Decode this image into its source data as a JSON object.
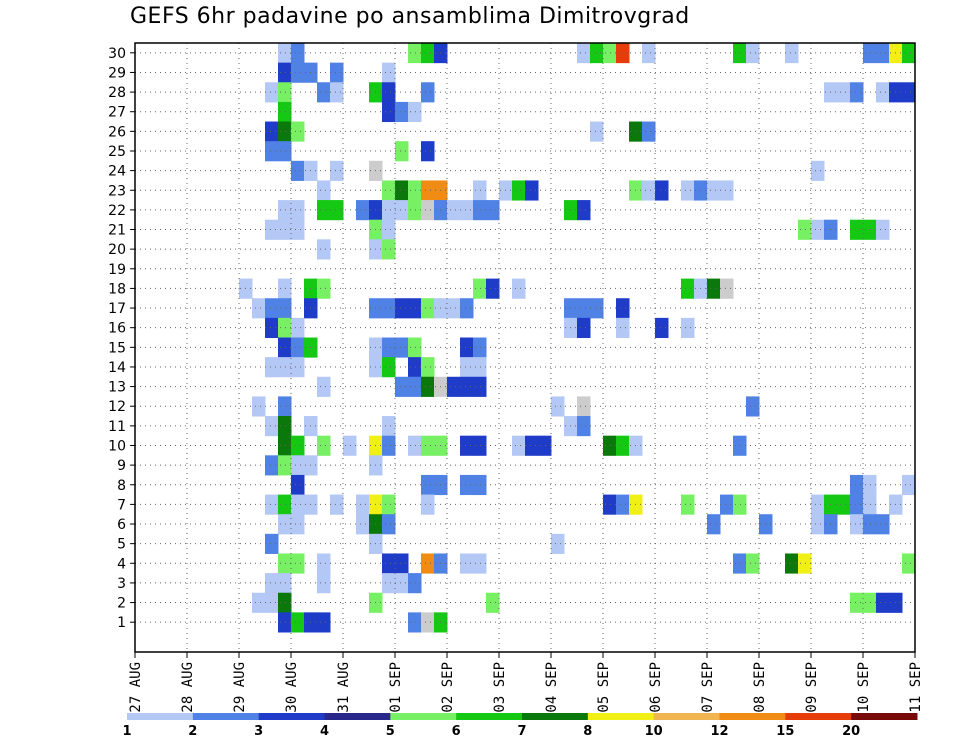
{
  "chart_data": {
    "type": "heatmap",
    "title": "GEFS 6hr padavine po ansamblima Dimitrovgrad",
    "xlabel": "",
    "ylabel": "",
    "x_ticks": [
      "27 AUG",
      "28 AUG",
      "29 AUG",
      "30 AUG",
      "31 AUG",
      "01 SEP",
      "02 SEP",
      "03 SEP",
      "04 SEP",
      "05 SEP",
      "06 SEP",
      "07 SEP",
      "08 SEP",
      "09 SEP",
      "10 SEP",
      "11 SEP"
    ],
    "xlim": [
      0,
      60
    ],
    "y_ticks": [
      "1",
      "2",
      "3",
      "4",
      "5",
      "6",
      "7",
      "8",
      "9",
      "10",
      "11",
      "12",
      "13",
      "14",
      "15",
      "16",
      "17",
      "18",
      "19",
      "20",
      "21",
      "22",
      "23",
      "24",
      "25",
      "26",
      "27",
      "28",
      "29",
      "30"
    ],
    "ylim": [
      0,
      30
    ],
    "grid": true,
    "legend": {
      "placement": "bottom",
      "levels": [
        "1",
        "2",
        "3",
        "4",
        "5",
        "6",
        "7",
        "8",
        "10",
        "12",
        "15",
        "20"
      ],
      "colors": [
        "#b4c8f5",
        "#5082e6",
        "#1e3cc8",
        "#28288c",
        "#78f064",
        "#14c814",
        "#0a780a",
        "#f0f014",
        "#f0b450",
        "#f08c14",
        "#e63c0a",
        "#780a0a"
      ]
    },
    "cells": [
      [
        11,
        30,
        1
      ],
      [
        12,
        30,
        2
      ],
      [
        21,
        30,
        5
      ],
      [
        22,
        30,
        6
      ],
      [
        23,
        30,
        3
      ],
      [
        34,
        30,
        1
      ],
      [
        35,
        30,
        6
      ],
      [
        36,
        30,
        5
      ],
      [
        37,
        30,
        11
      ],
      [
        39,
        30,
        1
      ],
      [
        46,
        30,
        6
      ],
      [
        47,
        30,
        1
      ],
      [
        50,
        30,
        1
      ],
      [
        56,
        30,
        2
      ],
      [
        57,
        30,
        2
      ],
      [
        58,
        30,
        8
      ],
      [
        59,
        30,
        6
      ],
      [
        11,
        29,
        3
      ],
      [
        12,
        29,
        2
      ],
      [
        13,
        29,
        2
      ],
      [
        15,
        29,
        2
      ],
      [
        19,
        29,
        1
      ],
      [
        10,
        28,
        1
      ],
      [
        11,
        28,
        5
      ],
      [
        14,
        28,
        2
      ],
      [
        15,
        28,
        1
      ],
      [
        18,
        28,
        6
      ],
      [
        19,
        28,
        3
      ],
      [
        22,
        28,
        2
      ],
      [
        53,
        28,
        1
      ],
      [
        54,
        28,
        1
      ],
      [
        55,
        28,
        2
      ],
      [
        57,
        28,
        1
      ],
      [
        58,
        28,
        3
      ],
      [
        59,
        28,
        3
      ],
      [
        11,
        27,
        6
      ],
      [
        19,
        27,
        3
      ],
      [
        20,
        27,
        2
      ],
      [
        21,
        27,
        1
      ],
      [
        10,
        26,
        3
      ],
      [
        11,
        26,
        7
      ],
      [
        12,
        26,
        5
      ],
      [
        35,
        26,
        1
      ],
      [
        38,
        26,
        7
      ],
      [
        39,
        26,
        2
      ],
      [
        10,
        25,
        2
      ],
      [
        11,
        25,
        2
      ],
      [
        20,
        25,
        5
      ],
      [
        22,
        25,
        3
      ],
      [
        12,
        24,
        2
      ],
      [
        13,
        24,
        1
      ],
      [
        15,
        24,
        1
      ],
      [
        18,
        24,
        20
      ],
      [
        52,
        24,
        1
      ],
      [
        14,
        23,
        1
      ],
      [
        19,
        23,
        5
      ],
      [
        20,
        23,
        7
      ],
      [
        21,
        23,
        5
      ],
      [
        22,
        23,
        10
      ],
      [
        23,
        23,
        10
      ],
      [
        26,
        23,
        1
      ],
      [
        28,
        23,
        1
      ],
      [
        29,
        23,
        6
      ],
      [
        30,
        23,
        3
      ],
      [
        38,
        23,
        5
      ],
      [
        39,
        23,
        1
      ],
      [
        40,
        23,
        3
      ],
      [
        42,
        23,
        1
      ],
      [
        43,
        23,
        2
      ],
      [
        44,
        23,
        1
      ],
      [
        45,
        23,
        1
      ],
      [
        11,
        22,
        1
      ],
      [
        12,
        22,
        1
      ],
      [
        14,
        22,
        6
      ],
      [
        15,
        22,
        6
      ],
      [
        17,
        22,
        2
      ],
      [
        18,
        22,
        3
      ],
      [
        19,
        22,
        1
      ],
      [
        20,
        22,
        1
      ],
      [
        21,
        22,
        5
      ],
      [
        22,
        22,
        20
      ],
      [
        23,
        22,
        2
      ],
      [
        24,
        22,
        1
      ],
      [
        25,
        22,
        1
      ],
      [
        26,
        22,
        2
      ],
      [
        27,
        22,
        2
      ],
      [
        33,
        22,
        6
      ],
      [
        34,
        22,
        3
      ],
      [
        10,
        21,
        1
      ],
      [
        11,
        21,
        1
      ],
      [
        12,
        21,
        1
      ],
      [
        18,
        21,
        5
      ],
      [
        19,
        21,
        1
      ],
      [
        51,
        21,
        5
      ],
      [
        52,
        21,
        1
      ],
      [
        53,
        21,
        2
      ],
      [
        55,
        21,
        6
      ],
      [
        56,
        21,
        6
      ],
      [
        57,
        21,
        1
      ],
      [
        18,
        20,
        1
      ],
      [
        19,
        20,
        5
      ],
      [
        14,
        20,
        1
      ],
      [
        8,
        18,
        1
      ],
      [
        11,
        18,
        1
      ],
      [
        13,
        18,
        6
      ],
      [
        14,
        18,
        5
      ],
      [
        26,
        18,
        5
      ],
      [
        27,
        18,
        3
      ],
      [
        29,
        18,
        1
      ],
      [
        42,
        18,
        6
      ],
      [
        43,
        18,
        1
      ],
      [
        44,
        18,
        7
      ],
      [
        45,
        18,
        15
      ],
      [
        9,
        17,
        1
      ],
      [
        10,
        17,
        2
      ],
      [
        11,
        17,
        2
      ],
      [
        13,
        17,
        3
      ],
      [
        18,
        17,
        2
      ],
      [
        19,
        17,
        2
      ],
      [
        20,
        17,
        3
      ],
      [
        21,
        17,
        3
      ],
      [
        22,
        17,
        5
      ],
      [
        23,
        17,
        1
      ],
      [
        24,
        17,
        1
      ],
      [
        25,
        17,
        2
      ],
      [
        33,
        17,
        2
      ],
      [
        34,
        17,
        2
      ],
      [
        35,
        17,
        2
      ],
      [
        37,
        17,
        3
      ],
      [
        10,
        16,
        3
      ],
      [
        11,
        16,
        5
      ],
      [
        12,
        16,
        1
      ],
      [
        33,
        16,
        1
      ],
      [
        34,
        16,
        3
      ],
      [
        37,
        16,
        1
      ],
      [
        40,
        16,
        3
      ],
      [
        42,
        16,
        1
      ],
      [
        11,
        15,
        3
      ],
      [
        12,
        15,
        2
      ],
      [
        13,
        15,
        6
      ],
      [
        18,
        15,
        1
      ],
      [
        19,
        15,
        2
      ],
      [
        20,
        15,
        2
      ],
      [
        21,
        15,
        5
      ],
      [
        25,
        15,
        3
      ],
      [
        26,
        15,
        2
      ],
      [
        10,
        14,
        1
      ],
      [
        11,
        14,
        1
      ],
      [
        12,
        14,
        1
      ],
      [
        18,
        14,
        1
      ],
      [
        19,
        14,
        6
      ],
      [
        21,
        14,
        3
      ],
      [
        22,
        14,
        5
      ],
      [
        25,
        14,
        1
      ],
      [
        26,
        14,
        1
      ],
      [
        14,
        13,
        1
      ],
      [
        20,
        13,
        2
      ],
      [
        21,
        13,
        2
      ],
      [
        22,
        13,
        7
      ],
      [
        23,
        13,
        20
      ],
      [
        24,
        13,
        3
      ],
      [
        25,
        13,
        3
      ],
      [
        26,
        13,
        3
      ],
      [
        9,
        12,
        1
      ],
      [
        11,
        12,
        2
      ],
      [
        32,
        12,
        1
      ],
      [
        34,
        12,
        15
      ],
      [
        47,
        12,
        2
      ],
      [
        10,
        11,
        1
      ],
      [
        11,
        11,
        7
      ],
      [
        13,
        11,
        1
      ],
      [
        19,
        11,
        1
      ],
      [
        33,
        11,
        1
      ],
      [
        34,
        11,
        2
      ],
      [
        11,
        10,
        7
      ],
      [
        12,
        10,
        6
      ],
      [
        14,
        10,
        5
      ],
      [
        16,
        10,
        1
      ],
      [
        18,
        10,
        8
      ],
      [
        19,
        10,
        2
      ],
      [
        21,
        10,
        1
      ],
      [
        22,
        10,
        5
      ],
      [
        23,
        10,
        5
      ],
      [
        25,
        10,
        3
      ],
      [
        26,
        10,
        3
      ],
      [
        29,
        10,
        1
      ],
      [
        30,
        10,
        3
      ],
      [
        31,
        10,
        3
      ],
      [
        36,
        10,
        7
      ],
      [
        37,
        10,
        6
      ],
      [
        38,
        10,
        1
      ],
      [
        46,
        10,
        2
      ],
      [
        10,
        9,
        2
      ],
      [
        11,
        9,
        5
      ],
      [
        12,
        9,
        1
      ],
      [
        13,
        9,
        1
      ],
      [
        18,
        9,
        1
      ],
      [
        12,
        8,
        3
      ],
      [
        22,
        8,
        2
      ],
      [
        23,
        8,
        2
      ],
      [
        25,
        8,
        2
      ],
      [
        26,
        8,
        2
      ],
      [
        55,
        8,
        2
      ],
      [
        56,
        8,
        1
      ],
      [
        59,
        8,
        1
      ],
      [
        10,
        7,
        1
      ],
      [
        11,
        7,
        6
      ],
      [
        12,
        7,
        1
      ],
      [
        13,
        7,
        1
      ],
      [
        15,
        7,
        1
      ],
      [
        17,
        7,
        1
      ],
      [
        18,
        7,
        8
      ],
      [
        19,
        7,
        5
      ],
      [
        22,
        7,
        1
      ],
      [
        36,
        7,
        3
      ],
      [
        37,
        7,
        2
      ],
      [
        38,
        7,
        8
      ],
      [
        42,
        7,
        5
      ],
      [
        45,
        7,
        2
      ],
      [
        46,
        7,
        5
      ],
      [
        52,
        7,
        1
      ],
      [
        53,
        7,
        6
      ],
      [
        54,
        7,
        6
      ],
      [
        55,
        7,
        2
      ],
      [
        56,
        7,
        1
      ],
      [
        58,
        7,
        1
      ],
      [
        11,
        6,
        1
      ],
      [
        12,
        6,
        1
      ],
      [
        17,
        6,
        1
      ],
      [
        18,
        6,
        7
      ],
      [
        19,
        6,
        2
      ],
      [
        44,
        6,
        2
      ],
      [
        48,
        6,
        2
      ],
      [
        52,
        6,
        1
      ],
      [
        53,
        6,
        2
      ],
      [
        55,
        6,
        1
      ],
      [
        56,
        6,
        2
      ],
      [
        57,
        6,
        2
      ],
      [
        10,
        5,
        2
      ],
      [
        18,
        5,
        1
      ],
      [
        32,
        5,
        1
      ],
      [
        11,
        4,
        5
      ],
      [
        12,
        4,
        5
      ],
      [
        14,
        4,
        1
      ],
      [
        19,
        4,
        3
      ],
      [
        20,
        4,
        3
      ],
      [
        22,
        4,
        10
      ],
      [
        23,
        4,
        2
      ],
      [
        25,
        4,
        1
      ],
      [
        26,
        4,
        1
      ],
      [
        46,
        4,
        2
      ],
      [
        47,
        4,
        5
      ],
      [
        50,
        4,
        7
      ],
      [
        51,
        4,
        8
      ],
      [
        59,
        4,
        5
      ],
      [
        10,
        3,
        1
      ],
      [
        11,
        3,
        1
      ],
      [
        14,
        3,
        1
      ],
      [
        19,
        3,
        1
      ],
      [
        20,
        3,
        1
      ],
      [
        21,
        3,
        2
      ],
      [
        9,
        2,
        1
      ],
      [
        10,
        2,
        1
      ],
      [
        11,
        2,
        7
      ],
      [
        18,
        2,
        5
      ],
      [
        27,
        2,
        5
      ],
      [
        55,
        2,
        5
      ],
      [
        56,
        2,
        5
      ],
      [
        57,
        2,
        3
      ],
      [
        58,
        2,
        3
      ],
      [
        11,
        1,
        3
      ],
      [
        12,
        1,
        6
      ],
      [
        13,
        1,
        3
      ],
      [
        14,
        1,
        3
      ],
      [
        21,
        1,
        2
      ],
      [
        22,
        1,
        15
      ],
      [
        23,
        1,
        6
      ]
    ]
  }
}
